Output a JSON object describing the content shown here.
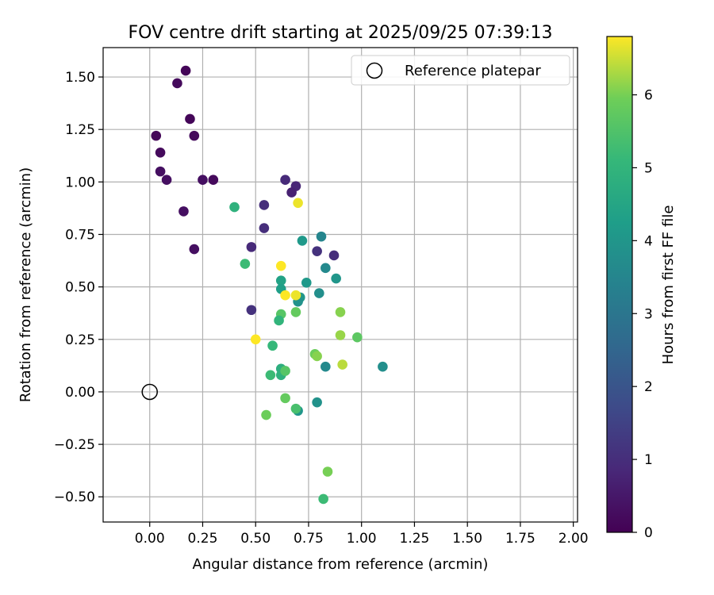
{
  "chart_data": {
    "type": "scatter",
    "title": "FOV centre drift starting at 2025/09/25 07:39:13",
    "xlabel": "Angular distance from reference (arcmin)",
    "ylabel": "Rotation from reference (arcmin)",
    "xlim": [
      -0.22,
      2.02
    ],
    "ylim": [
      -0.62,
      1.64
    ],
    "xticks": [
      "0.00",
      "0.25",
      "0.50",
      "0.75",
      "1.00",
      "1.25",
      "1.50",
      "1.75",
      "2.00"
    ],
    "yticks": [
      "−0.50",
      "−0.25",
      "0.00",
      "0.25",
      "0.50",
      "0.75",
      "1.00",
      "1.25",
      "1.50"
    ],
    "grid": true,
    "legend": {
      "placement": "upper right",
      "entries": [
        "Reference platepar"
      ]
    },
    "reference_point": {
      "x": 0.0,
      "y": 0.0
    },
    "colorbar": {
      "label": "Hours from first FF file",
      "range": [
        0,
        6.8
      ],
      "ticks": [
        "0",
        "1",
        "2",
        "3",
        "4",
        "5",
        "6"
      ],
      "colormap": "viridis"
    },
    "points": [
      {
        "x": 0.17,
        "y": 1.53,
        "h": 0.1
      },
      {
        "x": 0.13,
        "y": 1.47,
        "h": 0.2
      },
      {
        "x": 0.19,
        "y": 1.3,
        "h": 0.1
      },
      {
        "x": 0.03,
        "y": 1.22,
        "h": 0.1
      },
      {
        "x": 0.21,
        "y": 1.22,
        "h": 0.2
      },
      {
        "x": 0.05,
        "y": 1.14,
        "h": 0.2
      },
      {
        "x": 0.05,
        "y": 1.05,
        "h": 0.3
      },
      {
        "x": 0.08,
        "y": 1.01,
        "h": 0.3
      },
      {
        "x": 0.25,
        "y": 1.01,
        "h": 0.3
      },
      {
        "x": 0.3,
        "y": 1.01,
        "h": 0.2
      },
      {
        "x": 0.16,
        "y": 0.86,
        "h": 0.3
      },
      {
        "x": 0.21,
        "y": 0.68,
        "h": 0.3
      },
      {
        "x": 0.64,
        "y": 1.01,
        "h": 0.9
      },
      {
        "x": 0.69,
        "y": 0.98,
        "h": 0.8
      },
      {
        "x": 0.67,
        "y": 0.95,
        "h": 0.7
      },
      {
        "x": 0.54,
        "y": 0.89,
        "h": 1.0
      },
      {
        "x": 0.54,
        "y": 0.78,
        "h": 1.0
      },
      {
        "x": 0.48,
        "y": 0.69,
        "h": 0.9
      },
      {
        "x": 0.48,
        "y": 0.39,
        "h": 1.1
      },
      {
        "x": 0.79,
        "y": 0.67,
        "h": 1.1
      },
      {
        "x": 0.87,
        "y": 0.65,
        "h": 1.0
      },
      {
        "x": 0.81,
        "y": 0.74,
        "h": 3.5
      },
      {
        "x": 0.72,
        "y": 0.72,
        "h": 4.1
      },
      {
        "x": 0.83,
        "y": 0.59,
        "h": 3.6
      },
      {
        "x": 0.88,
        "y": 0.54,
        "h": 4.0
      },
      {
        "x": 0.74,
        "y": 0.52,
        "h": 4.1
      },
      {
        "x": 0.62,
        "y": 0.53,
        "h": 4.4
      },
      {
        "x": 0.62,
        "y": 0.49,
        "h": 4.3
      },
      {
        "x": 0.8,
        "y": 0.47,
        "h": 3.8
      },
      {
        "x": 0.71,
        "y": 0.45,
        "h": 4.0
      },
      {
        "x": 0.7,
        "y": 0.43,
        "h": 3.9
      },
      {
        "x": 0.83,
        "y": 0.12,
        "h": 3.6
      },
      {
        "x": 1.1,
        "y": 0.12,
        "h": 3.8
      },
      {
        "x": 0.79,
        "y": -0.05,
        "h": 3.9
      },
      {
        "x": 0.7,
        "y": -0.09,
        "h": 4.0
      },
      {
        "x": 0.4,
        "y": 0.88,
        "h": 4.9
      },
      {
        "x": 0.45,
        "y": 0.61,
        "h": 5.2
      },
      {
        "x": 0.62,
        "y": 0.37,
        "h": 5.6
      },
      {
        "x": 0.61,
        "y": 0.34,
        "h": 5.0
      },
      {
        "x": 0.69,
        "y": 0.38,
        "h": 5.8
      },
      {
        "x": 0.58,
        "y": 0.22,
        "h": 5.1
      },
      {
        "x": 0.62,
        "y": 0.11,
        "h": 4.8
      },
      {
        "x": 0.62,
        "y": 0.08,
        "h": 4.9
      },
      {
        "x": 0.57,
        "y": 0.08,
        "h": 5.2
      },
      {
        "x": 0.64,
        "y": 0.1,
        "h": 5.6
      },
      {
        "x": 0.64,
        "y": -0.03,
        "h": 5.8
      },
      {
        "x": 0.69,
        "y": -0.08,
        "h": 5.4
      },
      {
        "x": 0.55,
        "y": -0.11,
        "h": 5.9
      },
      {
        "x": 0.84,
        "y": -0.38,
        "h": 6.0
      },
      {
        "x": 0.82,
        "y": -0.51,
        "h": 5.2
      },
      {
        "x": 0.9,
        "y": 0.38,
        "h": 6.1
      },
      {
        "x": 0.9,
        "y": 0.27,
        "h": 6.2
      },
      {
        "x": 0.98,
        "y": 0.26,
        "h": 5.7
      },
      {
        "x": 0.78,
        "y": 0.18,
        "h": 5.9
      },
      {
        "x": 0.79,
        "y": 0.17,
        "h": 6.1
      },
      {
        "x": 0.91,
        "y": 0.13,
        "h": 6.4
      },
      {
        "x": 0.7,
        "y": 0.9,
        "h": 6.7
      },
      {
        "x": 0.62,
        "y": 0.6,
        "h": 6.8
      },
      {
        "x": 0.64,
        "y": 0.46,
        "h": 6.8
      },
      {
        "x": 0.69,
        "y": 0.46,
        "h": 6.7
      },
      {
        "x": 0.5,
        "y": 0.25,
        "h": 6.8
      }
    ]
  }
}
